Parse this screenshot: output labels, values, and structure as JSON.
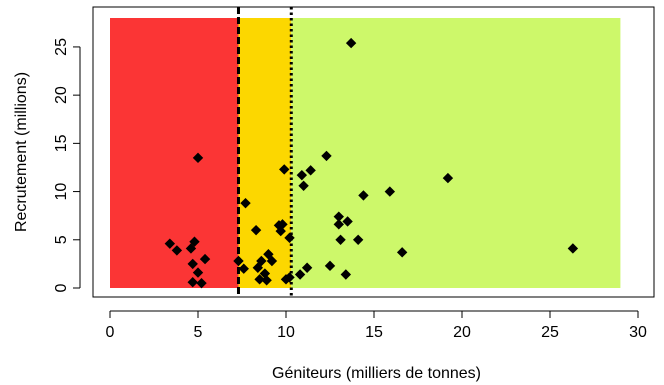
{
  "chart_data": {
    "type": "scatter",
    "title": "",
    "xlabel": "Géniteurs (milliers de tonnes)",
    "ylabel": "Recrutement (millions)",
    "xlim": [
      0,
      30
    ],
    "ylim": [
      0,
      28
    ],
    "xticks": [
      0,
      5,
      10,
      15,
      20,
      25,
      30
    ],
    "yticks": [
      0,
      5,
      10,
      15,
      20,
      25
    ],
    "x_tick_labels": [
      "0",
      "5",
      "10",
      "15",
      "20",
      "25",
      "30"
    ],
    "y_tick_labels": [
      "0",
      "5",
      "10",
      "15",
      "20",
      "25"
    ],
    "grid": false,
    "legend": "none",
    "zones": [
      {
        "from": 0,
        "to": 7.3,
        "ymax": 28,
        "color": "#fb3535"
      },
      {
        "from": 7.3,
        "to": 10.3,
        "ymax": 28,
        "color": "#fcd700"
      },
      {
        "from": 10.3,
        "to": 29,
        "ymax": 28,
        "color": "#cdf86a"
      }
    ],
    "reference_lines": [
      {
        "x": 7.3,
        "style": "dashed"
      },
      {
        "x": 10.3,
        "style": "dotted"
      }
    ],
    "marker": {
      "shape": "diamond",
      "color": "#000000"
    },
    "points": [
      {
        "x": 3.4,
        "y": 4.6
      },
      {
        "x": 3.8,
        "y": 3.9
      },
      {
        "x": 4.6,
        "y": 4.1
      },
      {
        "x": 4.8,
        "y": 4.8
      },
      {
        "x": 4.7,
        "y": 2.5
      },
      {
        "x": 5.0,
        "y": 13.5
      },
      {
        "x": 5.0,
        "y": 1.6
      },
      {
        "x": 5.4,
        "y": 3.0
      },
      {
        "x": 4.7,
        "y": 0.6
      },
      {
        "x": 5.2,
        "y": 0.5
      },
      {
        "x": 7.3,
        "y": 2.8
      },
      {
        "x": 7.6,
        "y": 2.0
      },
      {
        "x": 7.7,
        "y": 8.8
      },
      {
        "x": 8.3,
        "y": 6.0
      },
      {
        "x": 8.4,
        "y": 2.1
      },
      {
        "x": 8.6,
        "y": 2.8
      },
      {
        "x": 8.8,
        "y": 1.5
      },
      {
        "x": 9.0,
        "y": 3.5
      },
      {
        "x": 9.2,
        "y": 2.8
      },
      {
        "x": 8.5,
        "y": 0.9
      },
      {
        "x": 8.9,
        "y": 0.8
      },
      {
        "x": 9.6,
        "y": 6.5
      },
      {
        "x": 9.8,
        "y": 6.6
      },
      {
        "x": 9.7,
        "y": 5.9
      },
      {
        "x": 9.9,
        "y": 12.3
      },
      {
        "x": 10.2,
        "y": 5.2
      },
      {
        "x": 10.0,
        "y": 0.9
      },
      {
        "x": 10.2,
        "y": 1.1
      },
      {
        "x": 10.8,
        "y": 1.4
      },
      {
        "x": 10.9,
        "y": 11.7
      },
      {
        "x": 11.0,
        "y": 10.6
      },
      {
        "x": 11.2,
        "y": 2.1
      },
      {
        "x": 11.4,
        "y": 12.2
      },
      {
        "x": 12.3,
        "y": 13.7
      },
      {
        "x": 12.5,
        "y": 2.3
      },
      {
        "x": 13.0,
        "y": 7.4
      },
      {
        "x": 13.0,
        "y": 6.6
      },
      {
        "x": 13.1,
        "y": 5.0
      },
      {
        "x": 13.5,
        "y": 6.9
      },
      {
        "x": 13.4,
        "y": 1.4
      },
      {
        "x": 13.7,
        "y": 25.4
      },
      {
        "x": 14.1,
        "y": 5.0
      },
      {
        "x": 14.4,
        "y": 9.6
      },
      {
        "x": 15.9,
        "y": 10.0
      },
      {
        "x": 16.6,
        "y": 3.7
      },
      {
        "x": 19.2,
        "y": 11.4
      },
      {
        "x": 26.3,
        "y": 4.1
      }
    ]
  }
}
